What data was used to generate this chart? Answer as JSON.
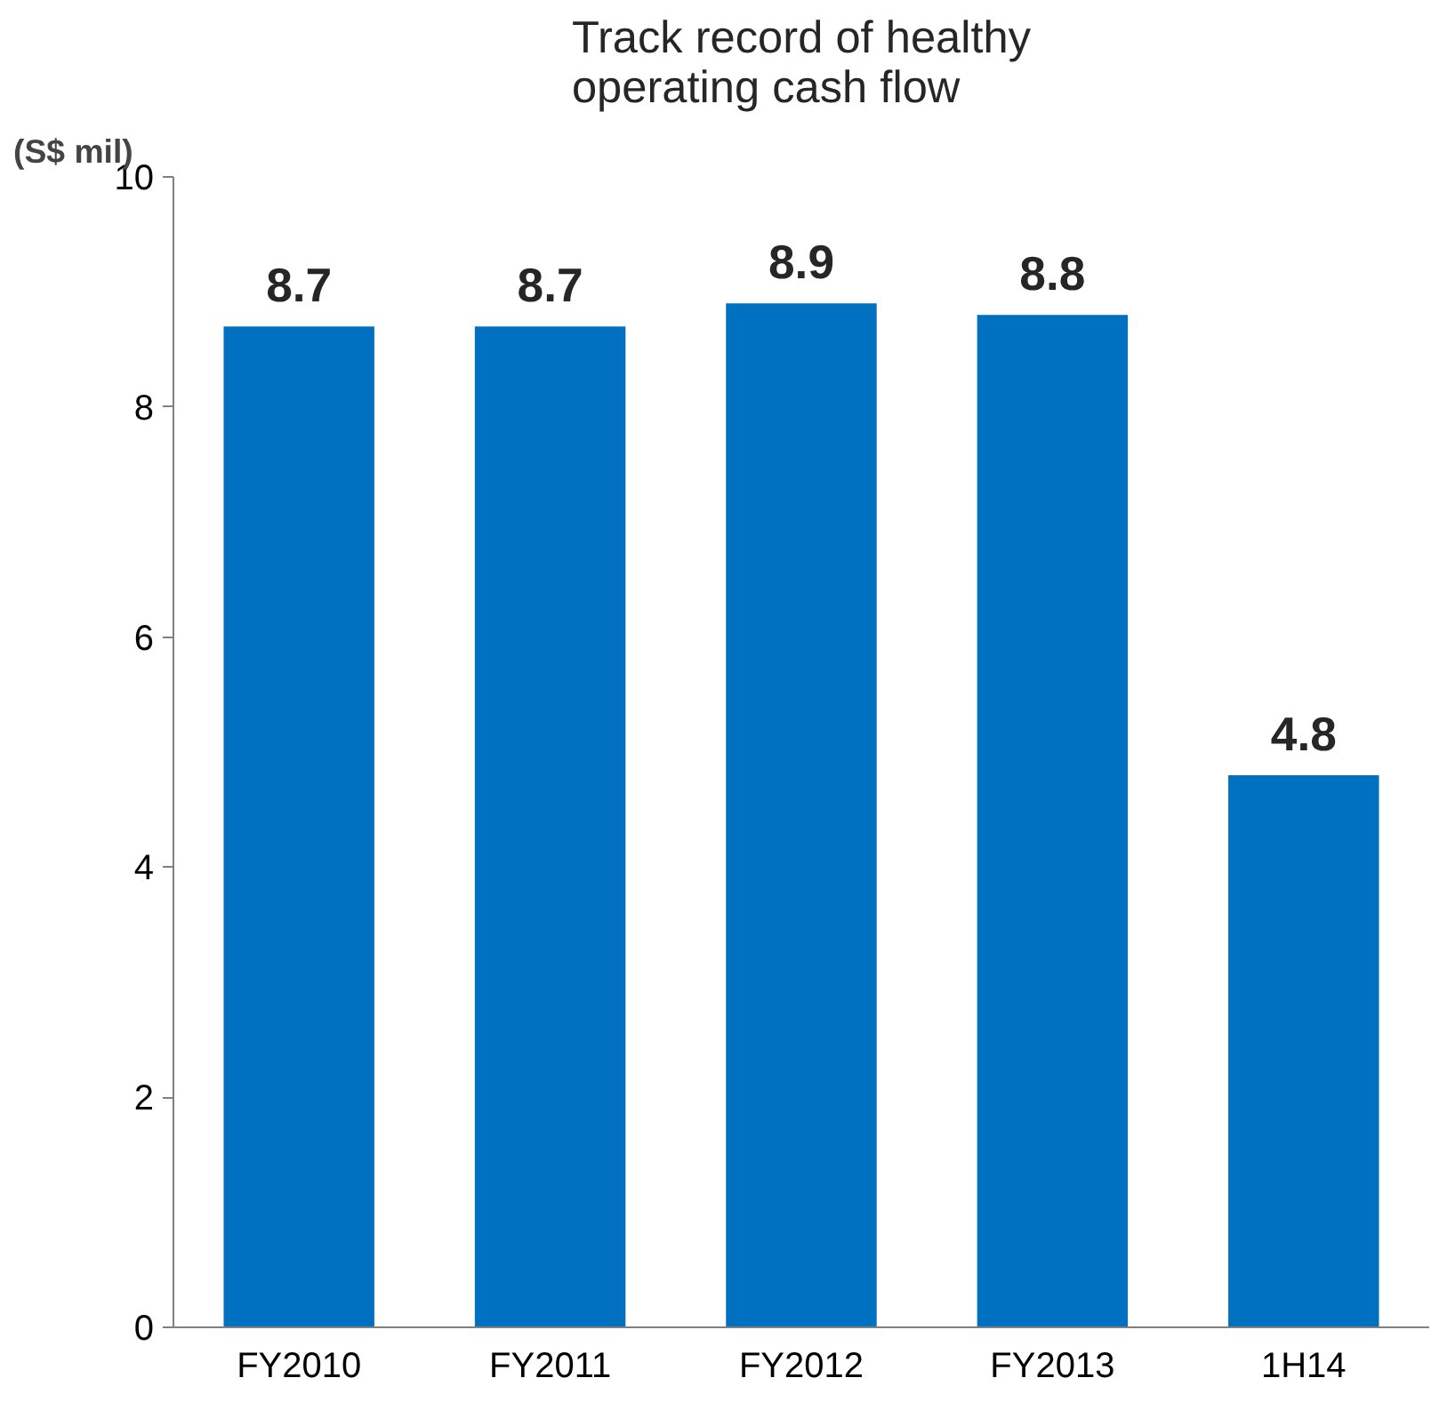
{
  "chart_data": {
    "type": "bar",
    "title": "Track record of healthy\noperating cash flow",
    "ylabel": "(S$ mil)",
    "categories": [
      "FY2010",
      "FY2011",
      "FY2012",
      "FY2013",
      "1H14"
    ],
    "values": [
      8.7,
      8.7,
      8.9,
      8.8,
      4.8
    ],
    "color": "#0070c0",
    "ylim": [
      0,
      10
    ],
    "yticks": [
      0,
      2,
      4,
      6,
      8,
      10
    ],
    "grid": false,
    "data_labels": true
  }
}
